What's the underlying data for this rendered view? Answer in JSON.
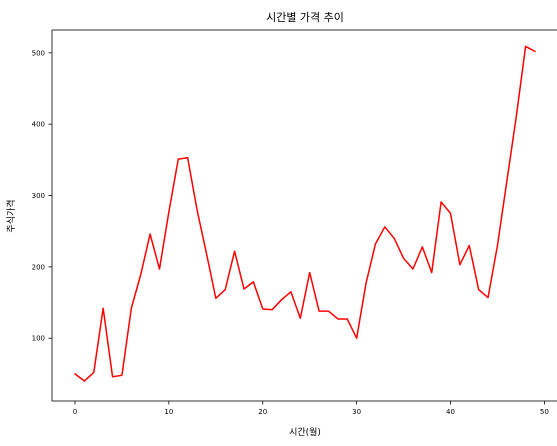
{
  "chart_data": {
    "type": "line",
    "title": "시간별 가격 추이",
    "xlabel": "시간(월)",
    "ylabel": "주식가격",
    "xlim": [
      -2.45,
      51.45
    ],
    "ylim": [
      12,
      532
    ],
    "x_ticks": [
      0,
      10,
      20,
      30,
      40,
      50
    ],
    "y_ticks": [
      100,
      200,
      300,
      400,
      500
    ],
    "grid": false,
    "legend": "none",
    "series": [
      {
        "color": "#ff0000",
        "x": [
          0,
          1,
          2,
          3,
          4,
          5,
          6,
          7,
          8,
          9,
          10,
          11,
          12,
          13,
          14,
          15,
          16,
          17,
          18,
          19,
          20,
          21,
          22,
          23,
          24,
          25,
          26,
          27,
          28,
          29,
          30,
          31,
          32,
          33,
          34,
          35,
          36,
          37,
          38,
          39,
          40,
          41,
          42,
          43,
          44,
          45,
          46,
          47,
          48,
          49
        ],
        "y": [
          50,
          40,
          52,
          142,
          46,
          48,
          142,
          189,
          246,
          197,
          277,
          351,
          353,
          280,
          219,
          156,
          168,
          222,
          169,
          179,
          141,
          140,
          154,
          165,
          128,
          192,
          138,
          138,
          127,
          127,
          100,
          177,
          232,
          256,
          240,
          212,
          197,
          228,
          192,
          291,
          275,
          203,
          230,
          168,
          157,
          230,
          320,
          410,
          509,
          502
        ]
      }
    ]
  }
}
